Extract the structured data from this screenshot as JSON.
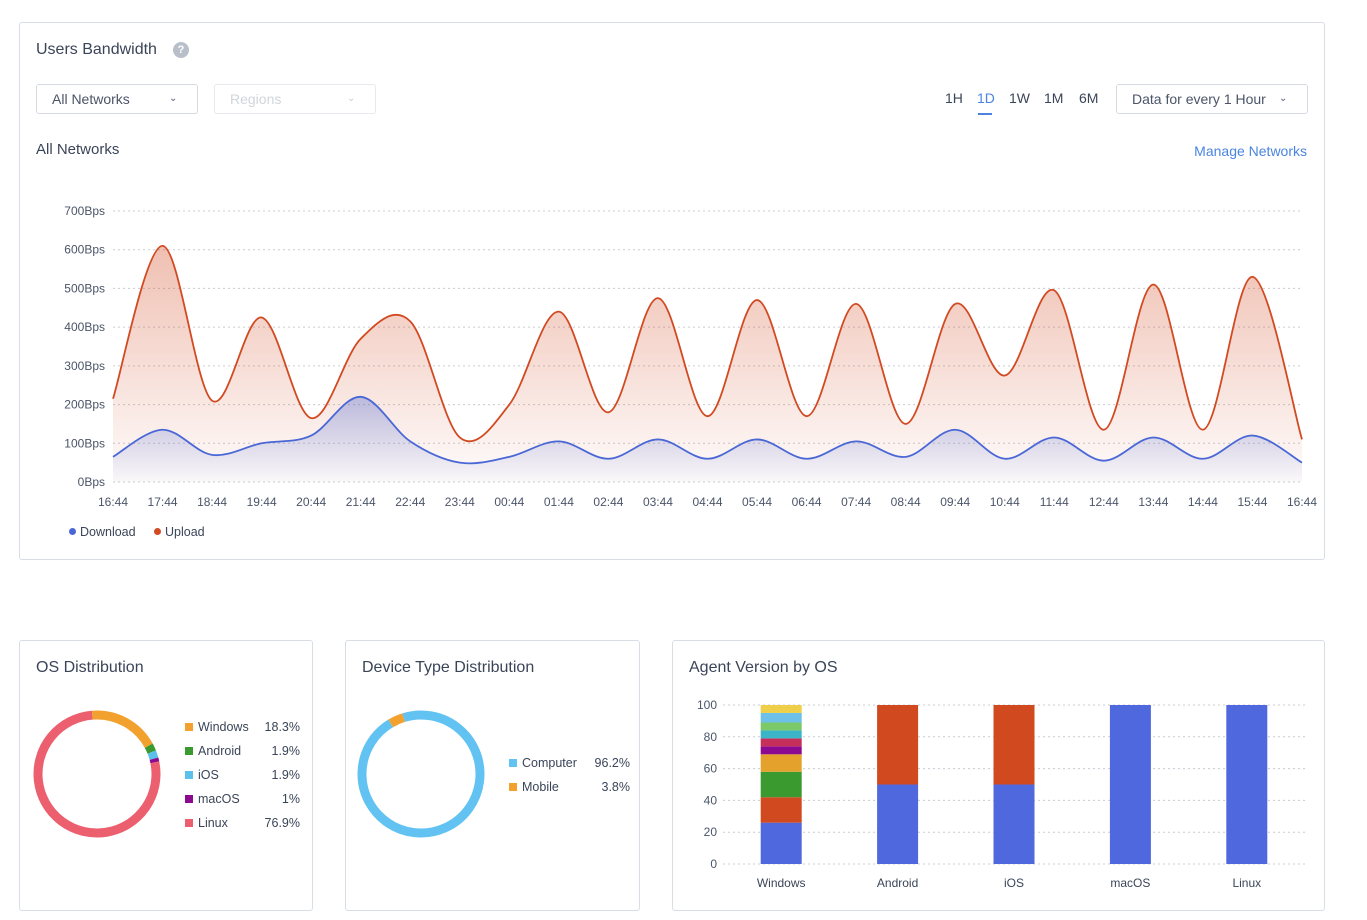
{
  "bandwidth": {
    "title": "Users Bandwidth",
    "help_icon": "question-circle-icon",
    "network_select": "All Networks",
    "region_select_placeholder": "Regions",
    "ranges": [
      "1H",
      "1D",
      "1W",
      "1M",
      "6M"
    ],
    "active_range": "1D",
    "interval_select": "Data for every 1 Hour",
    "subtitle": "All Networks",
    "manage_link": "Manage Networks",
    "chart_data": {
      "type": "area",
      "y_ticks": [
        "0Bps",
        "100Bps",
        "200Bps",
        "300Bps",
        "400Bps",
        "500Bps",
        "600Bps",
        "700Bps"
      ],
      "ylim": [
        0,
        700
      ],
      "x_ticks": [
        "16:44",
        "17:44",
        "18:44",
        "19:44",
        "20:44",
        "21:44",
        "22:44",
        "23:44",
        "00:44",
        "01:44",
        "02:44",
        "03:44",
        "04:44",
        "05:44",
        "06:44",
        "07:44",
        "08:44",
        "09:44",
        "10:44",
        "11:44",
        "12:44",
        "13:44",
        "14:44",
        "15:44",
        "16:44"
      ],
      "grid": true,
      "legend_position": "bottom-left",
      "series": [
        {
          "name": "Download",
          "color": "#4a67d6",
          "values": [
            65,
            135,
            70,
            100,
            120,
            220,
            105,
            50,
            65,
            105,
            60,
            110,
            60,
            110,
            60,
            105,
            65,
            135,
            60,
            115,
            55,
            115,
            60,
            120,
            50
          ]
        },
        {
          "name": "Upload",
          "color": "#d24a22",
          "values": [
            215,
            610,
            210,
            425,
            165,
            370,
            415,
            115,
            200,
            440,
            180,
            475,
            170,
            470,
            170,
            460,
            150,
            460,
            275,
            495,
            135,
            510,
            135,
            530,
            110
          ]
        }
      ]
    }
  },
  "os_distribution": {
    "title": "OS Distribution",
    "chart_data": {
      "type": "pie",
      "labels": [
        "Windows",
        "Android",
        "iOS",
        "macOS",
        "Linux"
      ],
      "values": [
        18.3,
        1.9,
        1.9,
        1,
        76.9
      ],
      "value_labels": [
        "18.3%",
        "1.9%",
        "1.9%",
        "1%",
        "76.9%"
      ],
      "colors": [
        "#f2a12e",
        "#3a9a2f",
        "#5cc0ec",
        "#8b0a8f",
        "#ec5f6e"
      ]
    }
  },
  "device_distribution": {
    "title": "Device Type Distribution",
    "chart_data": {
      "type": "pie",
      "labels": [
        "Computer",
        "Mobile"
      ],
      "values": [
        96.2,
        3.8
      ],
      "value_labels": [
        "96.2%",
        "3.8%"
      ],
      "colors": [
        "#62c3f2",
        "#f2a12e"
      ]
    }
  },
  "agent_version": {
    "title": "Agent Version by OS",
    "chart_data": {
      "type": "bar",
      "stacked": true,
      "categories": [
        "Windows",
        "Android",
        "iOS",
        "macOS",
        "Linux"
      ],
      "y_ticks": [
        "0",
        "20",
        "40",
        "60",
        "80",
        "100"
      ],
      "ylim": [
        0,
        100
      ],
      "stacks": [
        [
          {
            "value": 26,
            "color": "#5068dd"
          },
          {
            "value": 16,
            "color": "#d1491f"
          },
          {
            "value": 16,
            "color": "#3a9a2f"
          },
          {
            "value": 11,
            "color": "#e4a12c"
          },
          {
            "value": 5,
            "color": "#8b0a8f"
          },
          {
            "value": 5,
            "color": "#c72f5b"
          },
          {
            "value": 5,
            "color": "#3cb5c8"
          },
          {
            "value": 5,
            "color": "#7cc96a"
          },
          {
            "value": 6,
            "color": "#6cc0ea"
          },
          {
            "value": 5,
            "color": "#efcf4a"
          }
        ],
        [
          {
            "value": 50,
            "color": "#5068dd"
          },
          {
            "value": 50,
            "color": "#d1491f"
          }
        ],
        [
          {
            "value": 50,
            "color": "#5068dd"
          },
          {
            "value": 50,
            "color": "#d1491f"
          }
        ],
        [
          {
            "value": 100,
            "color": "#5068dd"
          }
        ],
        [
          {
            "value": 100,
            "color": "#5068dd"
          }
        ]
      ]
    }
  }
}
